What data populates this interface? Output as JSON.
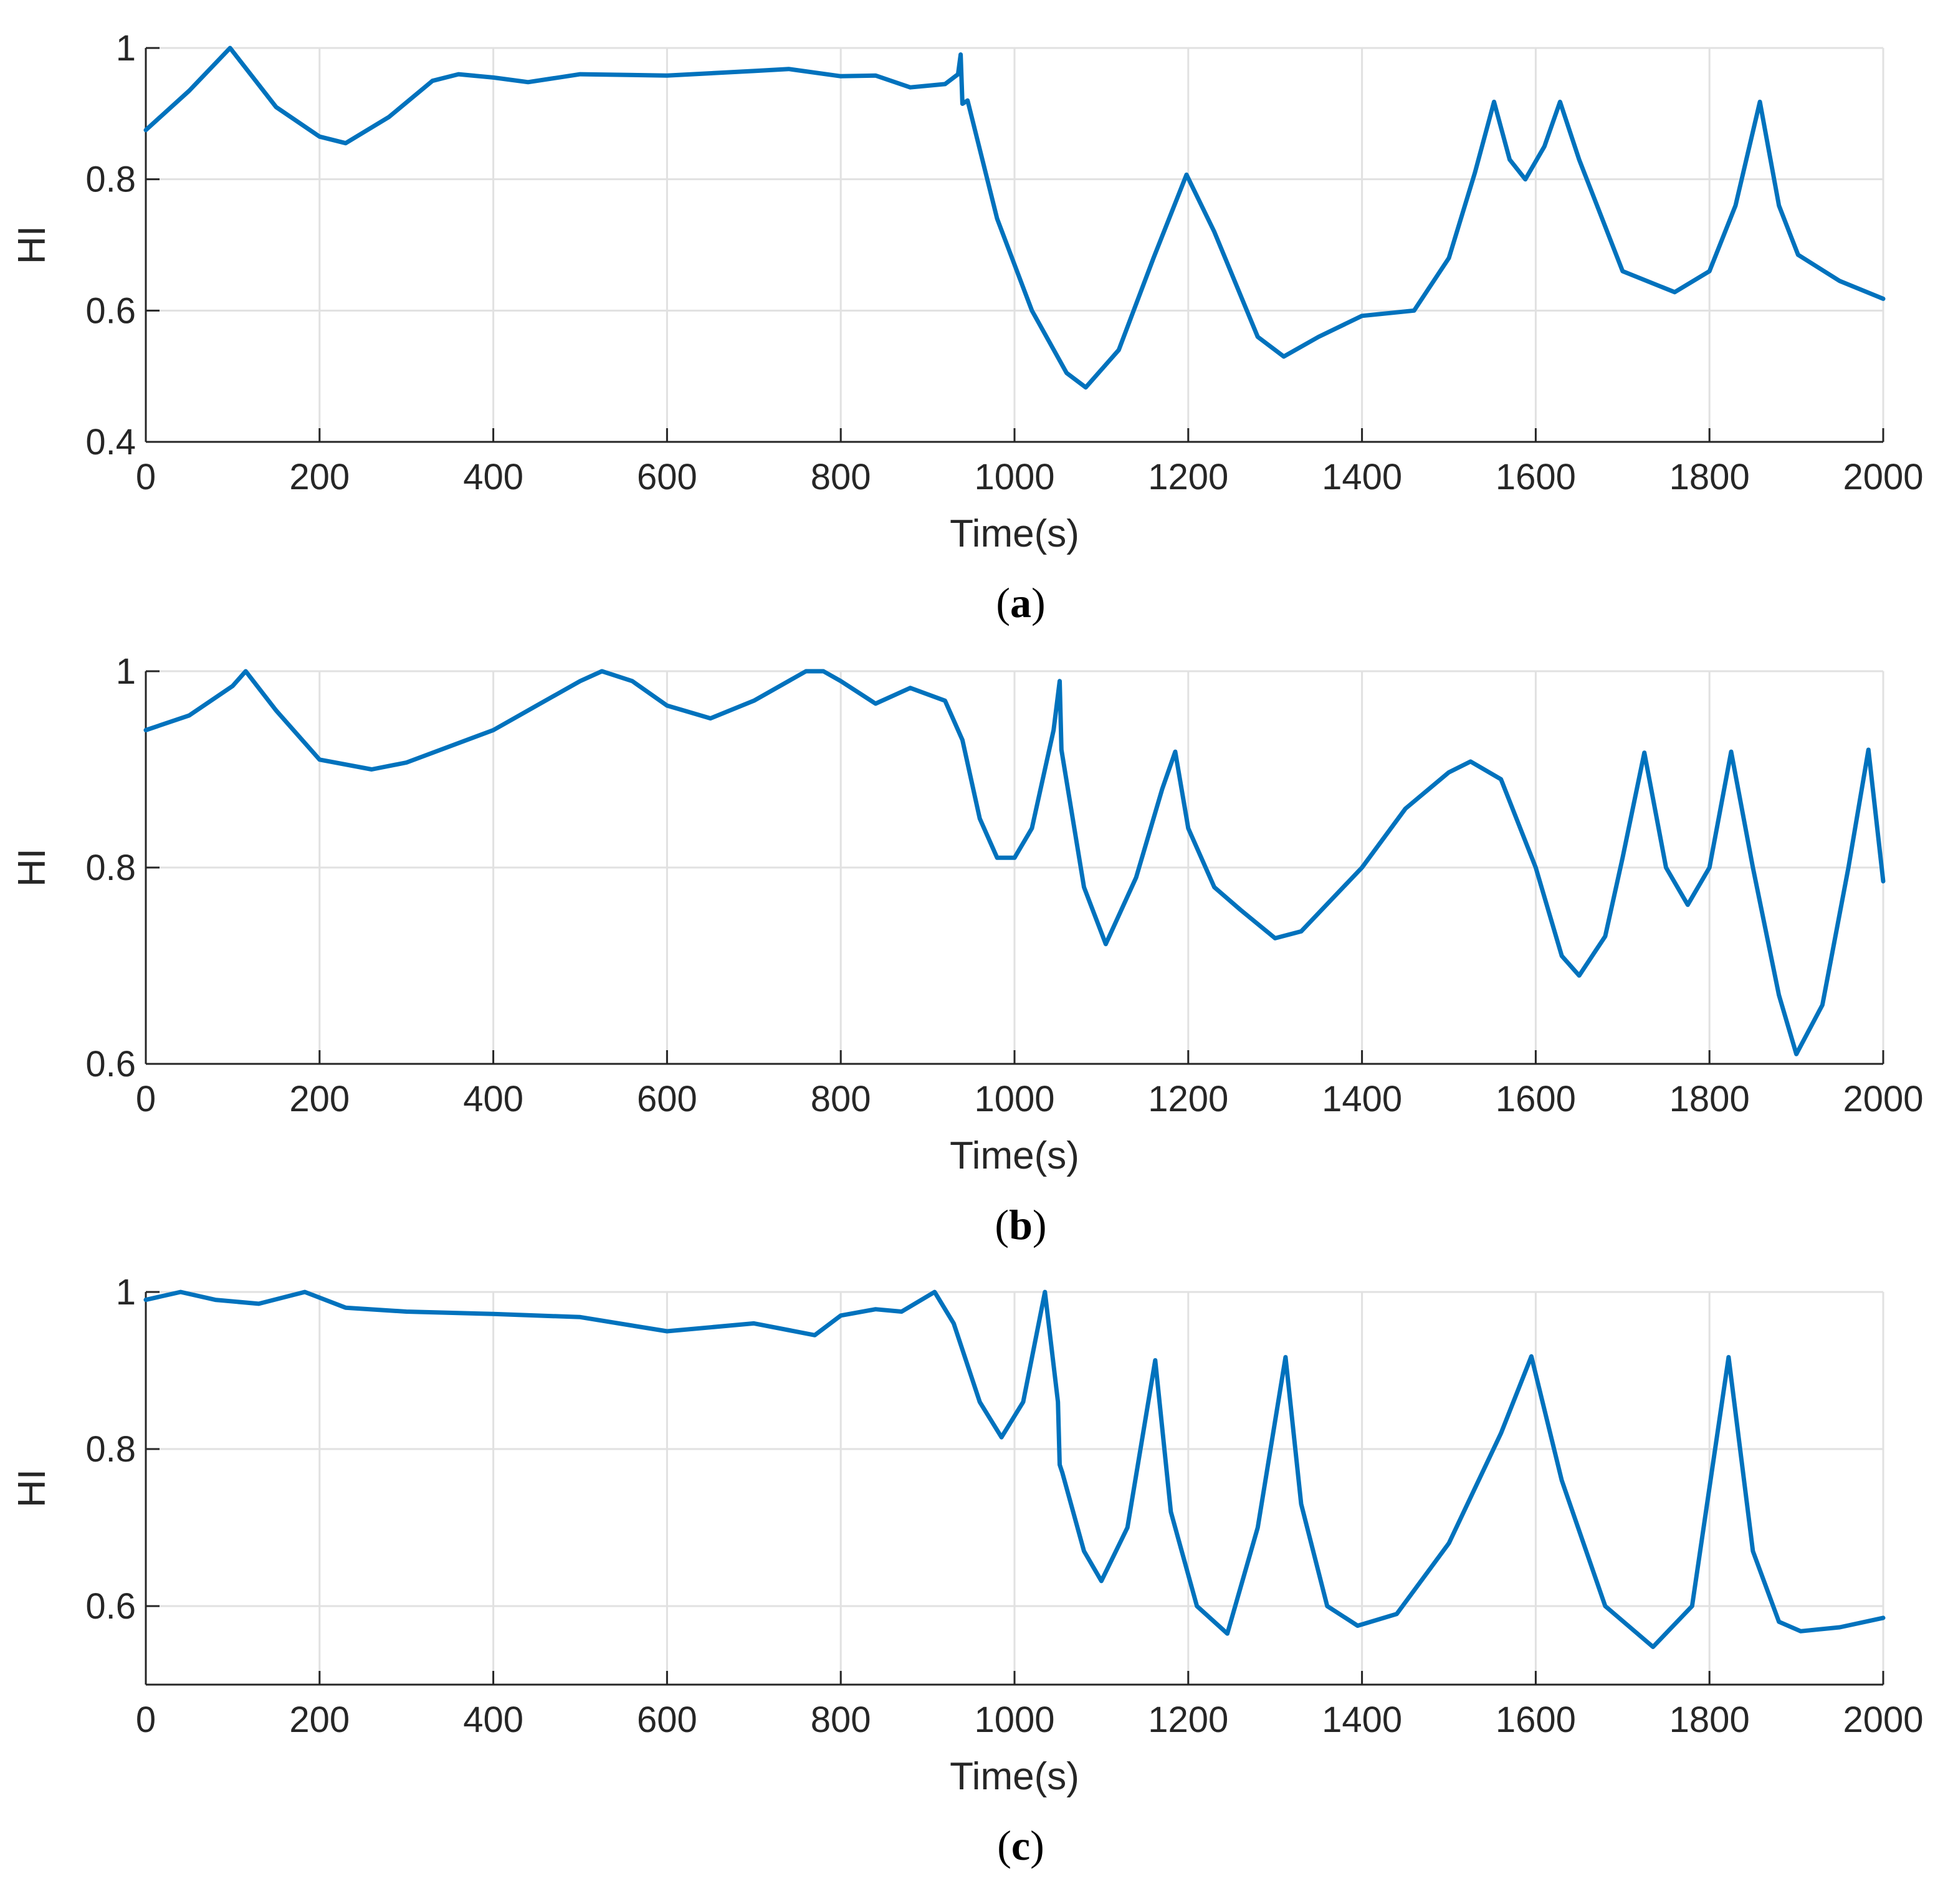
{
  "figure": {
    "panels": [
      {
        "id": "a",
        "caption_open": "(",
        "caption_letter": "a",
        "caption_close": ")"
      },
      {
        "id": "b",
        "caption_open": "(",
        "caption_letter": "b",
        "caption_close": ")"
      },
      {
        "id": "c",
        "caption_open": "(",
        "caption_letter": "c",
        "caption_close": ")"
      }
    ]
  },
  "colors": {
    "series": "#0072BD",
    "grid": "#e1e1e1",
    "axis": "#262626"
  },
  "chart_data": [
    {
      "type": "line",
      "panel": "a",
      "title": "",
      "xlabel": "Time(s)",
      "ylabel": "HI",
      "xlim": [
        0,
        2000
      ],
      "ylim": [
        0.4,
        1
      ],
      "xticks": [
        0,
        200,
        400,
        600,
        800,
        1000,
        1200,
        1400,
        1600,
        1800,
        2000
      ],
      "yticks": [
        0.4,
        0.6,
        0.8,
        1
      ],
      "ytick_labels": [
        "0.4",
        "0.6",
        "0.8",
        "1"
      ],
      "grid": true,
      "series": [
        {
          "name": "HI",
          "x": [
            0,
            50,
            97,
            150,
            200,
            230,
            280,
            330,
            360,
            400,
            440,
            500,
            600,
            700,
            740,
            800,
            840,
            880,
            920,
            935,
            938,
            940,
            946,
            980,
            1020,
            1060,
            1082,
            1120,
            1160,
            1198,
            1230,
            1280,
            1310,
            1350,
            1400,
            1460,
            1500,
            1530,
            1552,
            1570,
            1588,
            1610,
            1628,
            1650,
            1700,
            1760,
            1800,
            1830,
            1858,
            1880,
            1902,
            1950,
            2000
          ],
          "y": [
            0.875,
            0.935,
            1.0,
            0.91,
            0.865,
            0.855,
            0.895,
            0.95,
            0.96,
            0.955,
            0.948,
            0.96,
            0.958,
            0.965,
            0.968,
            0.957,
            0.958,
            0.94,
            0.945,
            0.96,
            0.99,
            0.915,
            0.92,
            0.74,
            0.6,
            0.505,
            0.483,
            0.54,
            0.68,
            0.807,
            0.72,
            0.56,
            0.53,
            0.56,
            0.592,
            0.6,
            0.68,
            0.81,
            0.918,
            0.83,
            0.8,
            0.85,
            0.918,
            0.83,
            0.66,
            0.628,
            0.66,
            0.76,
            0.918,
            0.76,
            0.685,
            0.645,
            0.618
          ]
        }
      ]
    },
    {
      "type": "line",
      "panel": "b",
      "title": "",
      "xlabel": "Time(s)",
      "ylabel": "HI",
      "xlim": [
        0,
        2000
      ],
      "ylim": [
        0.6,
        1
      ],
      "xticks": [
        0,
        200,
        400,
        600,
        800,
        1000,
        1200,
        1400,
        1600,
        1800,
        2000
      ],
      "yticks": [
        0.6,
        0.8,
        1
      ],
      "ytick_labels": [
        "0.6",
        "0.8",
        "1"
      ],
      "grid": true,
      "series": [
        {
          "name": "HI",
          "x": [
            0,
            50,
            100,
            115,
            150,
            200,
            260,
            300,
            400,
            450,
            500,
            525,
            560,
            600,
            650,
            700,
            760,
            780,
            800,
            840,
            880,
            920,
            940,
            960,
            980,
            1000,
            1020,
            1045,
            1052,
            1054,
            1080,
            1105,
            1140,
            1170,
            1185,
            1200,
            1230,
            1260,
            1300,
            1330,
            1400,
            1450,
            1500,
            1525,
            1560,
            1600,
            1630,
            1650,
            1680,
            1700,
            1725,
            1750,
            1775,
            1800,
            1825,
            1850,
            1880,
            1900,
            1930,
            1960,
            1983,
            2000
          ],
          "y": [
            0.94,
            0.955,
            0.985,
            1.0,
            0.96,
            0.91,
            0.9,
            0.907,
            0.94,
            0.965,
            0.99,
            1.0,
            0.99,
            0.965,
            0.952,
            0.97,
            1.0,
            1.0,
            0.99,
            0.967,
            0.983,
            0.97,
            0.93,
            0.85,
            0.81,
            0.81,
            0.84,
            0.94,
            0.99,
            0.92,
            0.78,
            0.722,
            0.79,
            0.88,
            0.918,
            0.84,
            0.78,
            0.757,
            0.728,
            0.735,
            0.8,
            0.86,
            0.897,
            0.908,
            0.89,
            0.8,
            0.71,
            0.69,
            0.73,
            0.81,
            0.917,
            0.8,
            0.762,
            0.8,
            0.918,
            0.8,
            0.67,
            0.61,
            0.66,
            0.8,
            0.92,
            0.786
          ]
        }
      ]
    },
    {
      "type": "line",
      "panel": "c",
      "title": "",
      "xlabel": "Time(s)",
      "ylabel": "HI",
      "xlim": [
        0,
        2000
      ],
      "ylim": [
        0.5,
        1
      ],
      "xticks": [
        0,
        200,
        400,
        600,
        800,
        1000,
        1200,
        1400,
        1600,
        1800,
        2000
      ],
      "yticks": [
        0.6,
        0.8,
        1
      ],
      "ytick_labels": [
        "0.6",
        "0.8",
        "1"
      ],
      "grid": true,
      "series": [
        {
          "name": "HI",
          "x": [
            0,
            40,
            80,
            130,
            183,
            230,
            300,
            400,
            500,
            600,
            700,
            770,
            800,
            840,
            870,
            908,
            930,
            960,
            985,
            1010,
            1035,
            1050,
            1052,
            1055,
            1080,
            1100,
            1130,
            1162,
            1180,
            1210,
            1245,
            1280,
            1312,
            1330,
            1360,
            1395,
            1440,
            1500,
            1560,
            1595,
            1630,
            1680,
            1735,
            1780,
            1822,
            1850,
            1880,
            1905,
            1950,
            2000
          ],
          "y": [
            0.99,
            1.0,
            0.99,
            0.985,
            1.0,
            0.98,
            0.975,
            0.972,
            0.968,
            0.95,
            0.96,
            0.945,
            0.97,
            0.978,
            0.975,
            1.0,
            0.96,
            0.86,
            0.815,
            0.86,
            1.0,
            0.86,
            0.78,
            0.77,
            0.67,
            0.632,
            0.7,
            0.913,
            0.72,
            0.6,
            0.565,
            0.7,
            0.917,
            0.73,
            0.6,
            0.575,
            0.59,
            0.68,
            0.82,
            0.918,
            0.76,
            0.6,
            0.548,
            0.6,
            0.917,
            0.67,
            0.58,
            0.568,
            0.573,
            0.585
          ]
        }
      ]
    }
  ]
}
